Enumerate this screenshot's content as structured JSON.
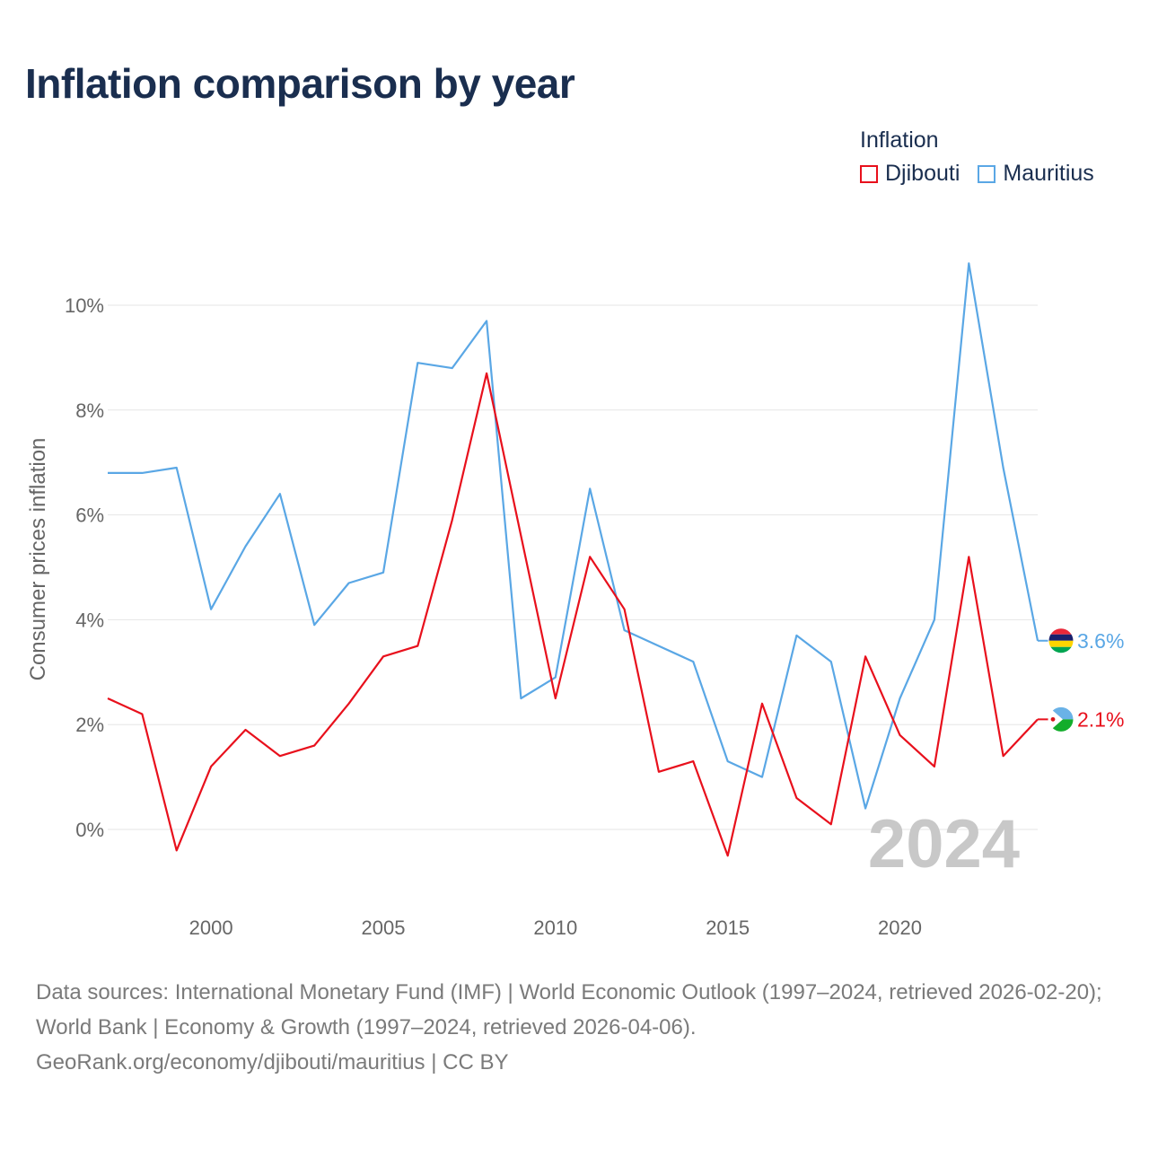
{
  "chart_data": {
    "type": "line",
    "title": "Inflation comparison by year",
    "legend_title": "Inflation",
    "ylabel": "Consumer prices inflation",
    "xlabel": "",
    "ylim": [
      -1.5,
      11.5
    ],
    "xlim": [
      1997,
      2024
    ],
    "yticks": [
      0,
      2,
      4,
      6,
      8,
      10
    ],
    "ytick_labels": [
      "0%",
      "2%",
      "4%",
      "6%",
      "8%",
      "10%"
    ],
    "xticks": [
      2000,
      2005,
      2010,
      2015,
      2020
    ],
    "xtick_labels": [
      "2000",
      "2005",
      "2010",
      "2015",
      "2020"
    ],
    "year_watermark": "2024",
    "x": [
      1997,
      1998,
      1999,
      2000,
      2001,
      2002,
      2003,
      2004,
      2005,
      2006,
      2007,
      2008,
      2009,
      2010,
      2011,
      2012,
      2013,
      2014,
      2015,
      2016,
      2017,
      2018,
      2019,
      2020,
      2021,
      2022,
      2023,
      2024
    ],
    "series": [
      {
        "name": "Djibouti",
        "color": "#e8101c",
        "end_label": "2.1%",
        "values": [
          2.5,
          2.2,
          -0.4,
          1.2,
          1.9,
          1.4,
          1.6,
          2.4,
          3.3,
          3.5,
          5.9,
          8.7,
          5.6,
          2.5,
          5.2,
          4.2,
          1.1,
          1.3,
          -0.5,
          2.4,
          0.6,
          0.1,
          3.3,
          1.8,
          1.2,
          5.2,
          1.4,
          2.1
        ]
      },
      {
        "name": "Mauritius",
        "color": "#5aa7e5",
        "end_label": "3.6%",
        "values": [
          6.8,
          6.8,
          6.9,
          4.2,
          5.4,
          6.4,
          3.9,
          4.7,
          4.9,
          8.9,
          8.8,
          9.7,
          2.5,
          2.9,
          6.5,
          3.8,
          3.5,
          3.2,
          1.3,
          1.0,
          3.7,
          3.2,
          0.4,
          2.5,
          4.0,
          10.8,
          6.9,
          3.6
        ]
      }
    ]
  },
  "footer": {
    "sources": "Data sources: International Monetary Fund (IMF) | World Economic Outlook (1997–2024, retrieved 2026-02-20); World Bank | Economy & Growth (1997–2024, retrieved 2026-04-06).",
    "credit": "GeoRank.org/economy/djibouti/mauritius | CC BY"
  }
}
